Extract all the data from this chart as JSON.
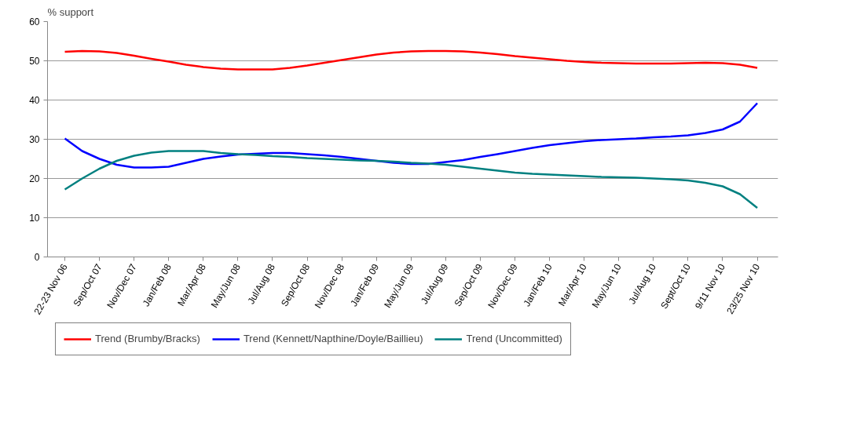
{
  "chart_data": {
    "type": "line",
    "ylabel": "% support",
    "categories": [
      "22-23 Nov 06",
      null,
      "Sep/Oct 07",
      null,
      "Nov/Dec 07",
      null,
      "Jan/Feb 08",
      null,
      "Mar/Apr 08",
      null,
      "May/Jun 08",
      null,
      "Jul/Aug 08",
      null,
      "Sep/Oct 08",
      null,
      "Nov/Dec 08",
      null,
      "Jan/Feb 09",
      null,
      "May/Jun 09",
      null,
      "Jul/Aug 09",
      null,
      "Sep/Oct 09",
      null,
      "Nov/Dec 09",
      null,
      "Jan/Feb 10",
      null,
      "Mar/Apr 10",
      null,
      "May/Jun 10",
      null,
      "Jul/Aug 10",
      null,
      "Sept/Oct 10",
      null,
      "9/11 Nov 10",
      null,
      "23/25 Nov 10"
    ],
    "series": [
      {
        "name": "Trend (Brumby/Bracks)",
        "color": "#ff0000",
        "values": [
          52.3,
          52.5,
          52.4,
          52.0,
          51.3,
          50.5,
          49.8,
          49.0,
          48.4,
          48.0,
          47.8,
          47.8,
          47.8,
          48.2,
          48.8,
          49.5,
          50.2,
          50.9,
          51.6,
          52.1,
          52.4,
          52.5,
          52.5,
          52.4,
          52.1,
          51.7,
          51.2,
          50.8,
          50.4,
          50.0,
          49.7,
          49.5,
          49.4,
          49.3,
          49.3,
          49.3,
          49.4,
          49.5,
          49.4,
          49.0,
          48.2
        ]
      },
      {
        "name": "Trend (Kennett/Napthine/Doyle/Baillieu)",
        "color": "#0000ff",
        "values": [
          30.2,
          27.0,
          25.0,
          23.5,
          22.8,
          22.8,
          23.0,
          24.0,
          25.0,
          25.6,
          26.1,
          26.3,
          26.5,
          26.5,
          26.2,
          25.9,
          25.5,
          25.0,
          24.5,
          24.0,
          23.7,
          23.7,
          24.2,
          24.7,
          25.5,
          26.2,
          27.0,
          27.8,
          28.5,
          29.0,
          29.5,
          29.8,
          30.0,
          30.2,
          30.5,
          30.7,
          31.0,
          31.6,
          32.5,
          34.5,
          39.2
        ]
      },
      {
        "name": "Trend (Uncommitted)",
        "color": "#008080",
        "values": [
          17.2,
          20.0,
          22.5,
          24.5,
          25.8,
          26.6,
          27.0,
          27.0,
          27.0,
          26.5,
          26.2,
          26.0,
          25.7,
          25.5,
          25.2,
          25.0,
          24.8,
          24.6,
          24.5,
          24.3,
          24.0,
          23.8,
          23.5,
          23.0,
          22.5,
          22.0,
          21.5,
          21.2,
          21.0,
          20.8,
          20.6,
          20.4,
          20.3,
          20.2,
          20.0,
          19.8,
          19.5,
          18.9,
          18.0,
          16.0,
          12.5
        ]
      }
    ],
    "ylim": [
      0,
      60
    ],
    "yticks": [
      0,
      10,
      20,
      30,
      40,
      50,
      60
    ],
    "grid": "y",
    "legend": "bottom",
    "marker": "none",
    "line_style": "solid"
  }
}
